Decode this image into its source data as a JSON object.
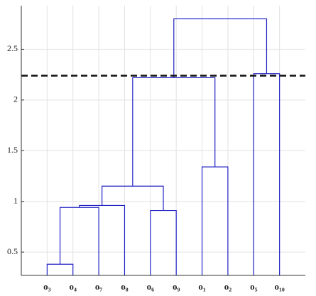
{
  "chart_data": {
    "type": "dendrogram",
    "leaves": [
      "o₃",
      "o₄",
      "o₇",
      "o₈",
      "o₆",
      "o₉",
      "o₁",
      "o₂",
      "o₅",
      "o₁₀"
    ],
    "merges": [
      [
        0,
        1,
        0.38
      ],
      [
        10,
        2,
        0.94
      ],
      [
        11,
        3,
        0.96
      ],
      [
        4,
        5,
        0.91
      ],
      [
        12,
        13,
        1.15
      ],
      [
        6,
        7,
        1.34
      ],
      [
        14,
        15,
        2.22
      ],
      [
        8,
        9,
        2.26
      ],
      [
        16,
        17,
        2.8
      ]
    ],
    "color": "#2323c4",
    "threshold": 2.24,
    "threshold_color": "#111111",
    "ylim": [
      0.27,
      2.93
    ],
    "yticks": [
      0.5,
      1,
      1.5,
      2,
      2.5
    ],
    "grid": true
  }
}
